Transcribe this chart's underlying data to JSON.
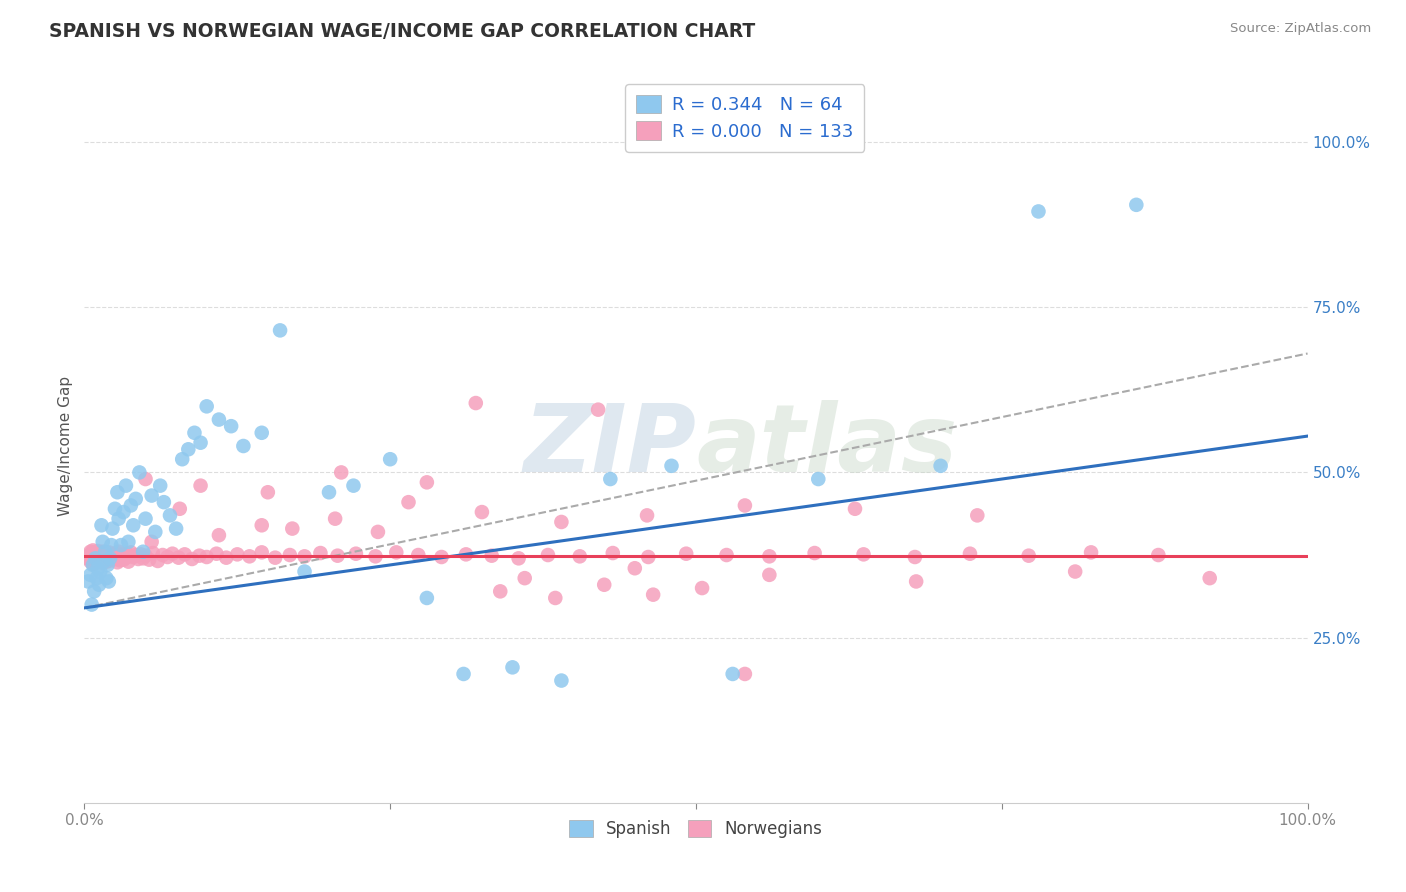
{
  "title": "SPANISH VS NORWEGIAN WAGE/INCOME GAP CORRELATION CHART",
  "source": "Source: ZipAtlas.com",
  "ylabel": "Wage/Income Gap",
  "xlim": [
    0.0,
    1.0
  ],
  "ylim": [
    0.0,
    1.08
  ],
  "ytick_vals": [
    0.25,
    0.5,
    0.75,
    1.0
  ],
  "ytick_labels": [
    "25.0%",
    "50.0%",
    "75.0%",
    "100.0%"
  ],
  "legend_R_spanish": "0.344",
  "legend_N_spanish": "64",
  "legend_R_norwegian": "0.000",
  "legend_N_norwegian": "133",
  "spanish_color": "#8FC8EE",
  "norwegian_color": "#F5A0BC",
  "spanish_line_color": "#2E6FBE",
  "norwegian_line_color": "#E8405A",
  "gray_dash_color": "#AAAAAA",
  "background_color": "#FFFFFF",
  "grid_color": "#DDDDDD",
  "watermark_color": "#D0DFF0",
  "title_color": "#333333",
  "label_color": "#555555",
  "legend_text_color": "#2B6CCF",
  "spanish_line_x0": 0.0,
  "spanish_line_y0": 0.295,
  "spanish_line_x1": 1.0,
  "spanish_line_y1": 0.555,
  "norwegian_line_y": 0.373,
  "gray_line_x0": 0.0,
  "gray_line_y0": 0.295,
  "gray_line_x1": 1.0,
  "gray_line_y1": 0.68,
  "spanish_points_x": [
    0.003,
    0.005,
    0.006,
    0.007,
    0.008,
    0.009,
    0.01,
    0.011,
    0.012,
    0.013,
    0.014,
    0.015,
    0.016,
    0.017,
    0.018,
    0.019,
    0.02,
    0.021,
    0.022,
    0.023,
    0.025,
    0.027,
    0.028,
    0.03,
    0.032,
    0.034,
    0.036,
    0.038,
    0.04,
    0.042,
    0.045,
    0.048,
    0.05,
    0.055,
    0.058,
    0.062,
    0.065,
    0.07,
    0.075,
    0.08,
    0.085,
    0.09,
    0.095,
    0.1,
    0.11,
    0.12,
    0.13,
    0.145,
    0.16,
    0.18,
    0.2,
    0.22,
    0.25,
    0.28,
    0.31,
    0.35,
    0.39,
    0.43,
    0.48,
    0.53,
    0.6,
    0.7,
    0.78,
    0.86
  ],
  "spanish_points_y": [
    0.335,
    0.345,
    0.3,
    0.36,
    0.32,
    0.37,
    0.34,
    0.355,
    0.33,
    0.35,
    0.42,
    0.395,
    0.365,
    0.38,
    0.34,
    0.36,
    0.335,
    0.37,
    0.39,
    0.415,
    0.445,
    0.47,
    0.43,
    0.39,
    0.44,
    0.48,
    0.395,
    0.45,
    0.42,
    0.46,
    0.5,
    0.38,
    0.43,
    0.465,
    0.41,
    0.48,
    0.455,
    0.435,
    0.415,
    0.52,
    0.535,
    0.56,
    0.545,
    0.6,
    0.58,
    0.57,
    0.54,
    0.56,
    0.715,
    0.35,
    0.47,
    0.48,
    0.52,
    0.31,
    0.195,
    0.205,
    0.185,
    0.49,
    0.51,
    0.195,
    0.49,
    0.51,
    0.895,
    0.905
  ],
  "norwegian_points_x": [
    0.003,
    0.004,
    0.005,
    0.005,
    0.006,
    0.006,
    0.007,
    0.007,
    0.008,
    0.008,
    0.009,
    0.009,
    0.01,
    0.01,
    0.011,
    0.011,
    0.012,
    0.012,
    0.013,
    0.013,
    0.014,
    0.014,
    0.015,
    0.015,
    0.016,
    0.016,
    0.017,
    0.017,
    0.018,
    0.018,
    0.019,
    0.019,
    0.02,
    0.02,
    0.021,
    0.022,
    0.023,
    0.024,
    0.025,
    0.026,
    0.027,
    0.028,
    0.029,
    0.03,
    0.031,
    0.032,
    0.033,
    0.034,
    0.035,
    0.036,
    0.038,
    0.04,
    0.042,
    0.044,
    0.046,
    0.048,
    0.05,
    0.053,
    0.056,
    0.06,
    0.064,
    0.068,
    0.072,
    0.077,
    0.082,
    0.088,
    0.094,
    0.1,
    0.108,
    0.116,
    0.125,
    0.135,
    0.145,
    0.156,
    0.168,
    0.18,
    0.193,
    0.207,
    0.222,
    0.238,
    0.255,
    0.273,
    0.292,
    0.312,
    0.333,
    0.355,
    0.379,
    0.405,
    0.432,
    0.461,
    0.492,
    0.525,
    0.56,
    0.597,
    0.637,
    0.679,
    0.724,
    0.772,
    0.823,
    0.878,
    0.078,
    0.145,
    0.205,
    0.265,
    0.325,
    0.39,
    0.46,
    0.54,
    0.63,
    0.73,
    0.34,
    0.385,
    0.425,
    0.465,
    0.505,
    0.05,
    0.095,
    0.15,
    0.21,
    0.28,
    0.36,
    0.45,
    0.56,
    0.68,
    0.81,
    0.92,
    0.055,
    0.11,
    0.17,
    0.24,
    0.32,
    0.42,
    0.54
  ],
  "norwegian_points_y": [
    0.37,
    0.375,
    0.365,
    0.38,
    0.368,
    0.378,
    0.362,
    0.382,
    0.37,
    0.375,
    0.366,
    0.376,
    0.372,
    0.378,
    0.364,
    0.381,
    0.369,
    0.374,
    0.367,
    0.379,
    0.371,
    0.376,
    0.363,
    0.38,
    0.368,
    0.375,
    0.37,
    0.377,
    0.365,
    0.378,
    0.372,
    0.374,
    0.366,
    0.379,
    0.371,
    0.373,
    0.368,
    0.375,
    0.37,
    0.378,
    0.364,
    0.38,
    0.367,
    0.373,
    0.376,
    0.368,
    0.374,
    0.371,
    0.377,
    0.365,
    0.379,
    0.372,
    0.375,
    0.369,
    0.376,
    0.37,
    0.374,
    0.368,
    0.378,
    0.366,
    0.375,
    0.372,
    0.377,
    0.371,
    0.376,
    0.369,
    0.374,
    0.372,
    0.377,
    0.371,
    0.376,
    0.373,
    0.379,
    0.371,
    0.375,
    0.373,
    0.378,
    0.374,
    0.377,
    0.373,
    0.379,
    0.375,
    0.372,
    0.376,
    0.374,
    0.37,
    0.375,
    0.373,
    0.378,
    0.372,
    0.377,
    0.375,
    0.373,
    0.378,
    0.376,
    0.372,
    0.377,
    0.374,
    0.379,
    0.375,
    0.445,
    0.42,
    0.43,
    0.455,
    0.44,
    0.425,
    0.435,
    0.45,
    0.445,
    0.435,
    0.32,
    0.31,
    0.33,
    0.315,
    0.325,
    0.49,
    0.48,
    0.47,
    0.5,
    0.485,
    0.34,
    0.355,
    0.345,
    0.335,
    0.35,
    0.34,
    0.395,
    0.405,
    0.415,
    0.41,
    0.605,
    0.595,
    0.195
  ]
}
